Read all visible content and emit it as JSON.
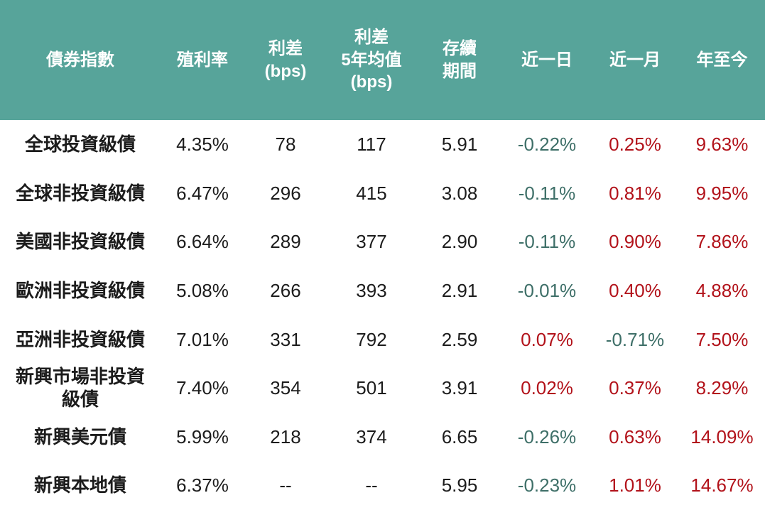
{
  "chart_data": {
    "type": "table",
    "title": "",
    "columns": [
      {
        "key": "name",
        "lines": [
          "債券指數"
        ]
      },
      {
        "key": "yield",
        "lines": [
          "殖利率"
        ]
      },
      {
        "key": "spread",
        "lines": [
          "利差",
          "(bps)"
        ]
      },
      {
        "key": "spread5y",
        "lines": [
          "利差",
          "5年均值",
          "(bps)"
        ]
      },
      {
        "key": "duration",
        "lines": [
          "存續",
          "期間"
        ]
      },
      {
        "key": "day",
        "lines": [
          "近一日"
        ]
      },
      {
        "key": "month",
        "lines": [
          "近一月"
        ]
      },
      {
        "key": "ytd",
        "lines": [
          "年至今"
        ]
      }
    ],
    "change_columns": [
      5,
      6,
      7
    ],
    "rows": [
      [
        "全球投資級債",
        "4.35%",
        "78",
        "117",
        "5.91",
        "-0.22%",
        "0.25%",
        "9.63%"
      ],
      [
        "全球非投資級債",
        "6.47%",
        "296",
        "415",
        "3.08",
        "-0.11%",
        "0.81%",
        "9.95%"
      ],
      [
        "美國非投資級債",
        "6.64%",
        "289",
        "377",
        "2.90",
        "-0.11%",
        "0.90%",
        "7.86%"
      ],
      [
        "歐洲非投資級債",
        "5.08%",
        "266",
        "393",
        "2.91",
        "-0.01%",
        "0.40%",
        "4.88%"
      ],
      [
        "亞洲非投資級債",
        "7.01%",
        "331",
        "792",
        "2.59",
        "0.07%",
        "-0.71%",
        "7.50%"
      ],
      [
        "新興市場非投資級債",
        "7.40%",
        "354",
        "501",
        "3.91",
        "0.02%",
        "0.37%",
        "8.29%"
      ],
      [
        "新興美元債",
        "5.99%",
        "218",
        "374",
        "6.65",
        "-0.26%",
        "0.63%",
        "14.09%"
      ],
      [
        "新興本地債",
        "6.37%",
        "--",
        "--",
        "5.95",
        "-0.23%",
        "1.01%",
        "14.67%"
      ]
    ]
  },
  "colors": {
    "header_bg": "#57a49a",
    "header_text": "#ffffff",
    "body_text": "#1c1c1c",
    "positive_red": "#b2121a",
    "negative_teal": "#3e6f68"
  }
}
